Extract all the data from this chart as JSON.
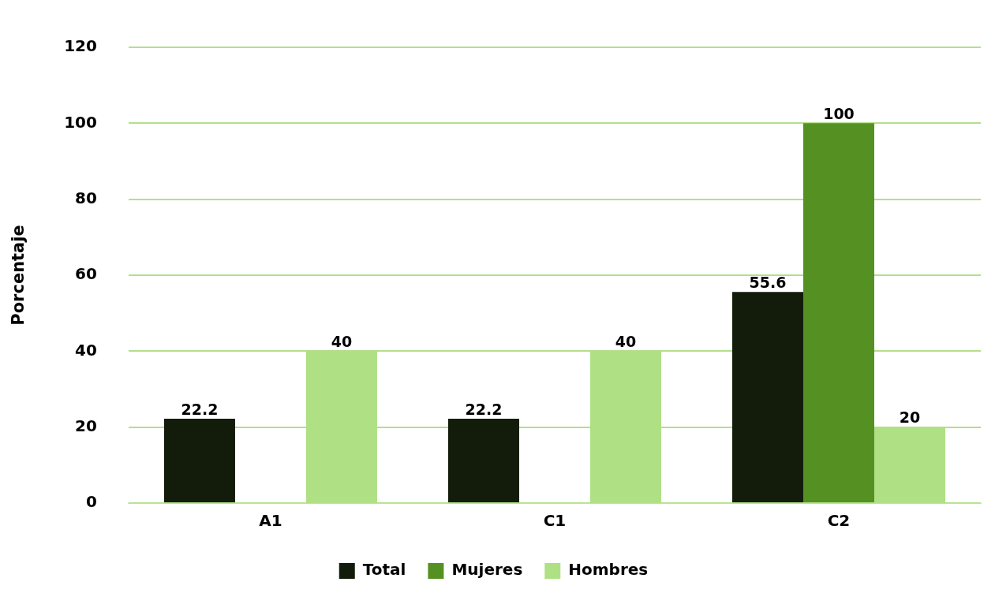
{
  "chart_data": {
    "type": "bar",
    "ylabel": "Porcentaje",
    "categories": [
      "A1",
      "C1",
      "C2"
    ],
    "series": [
      {
        "name": "Total",
        "color": "#131c0a",
        "values": [
          22.2,
          22.2,
          55.6
        ],
        "value_labels": [
          "22.2",
          "22.2",
          "55.6"
        ]
      },
      {
        "name": "Mujeres",
        "color": "#559122",
        "values": [
          null,
          null,
          100
        ],
        "value_labels": [
          null,
          null,
          "100"
        ]
      },
      {
        "name": "Hombres",
        "color": "#afe084",
        "values": [
          40,
          40,
          20
        ],
        "value_labels": [
          "40",
          "40",
          "20"
        ]
      }
    ],
    "ylim": [
      0,
      120
    ],
    "yticks": [
      0,
      20,
      40,
      60,
      80,
      100,
      120
    ],
    "grid": "y",
    "legend": "bottom"
  }
}
